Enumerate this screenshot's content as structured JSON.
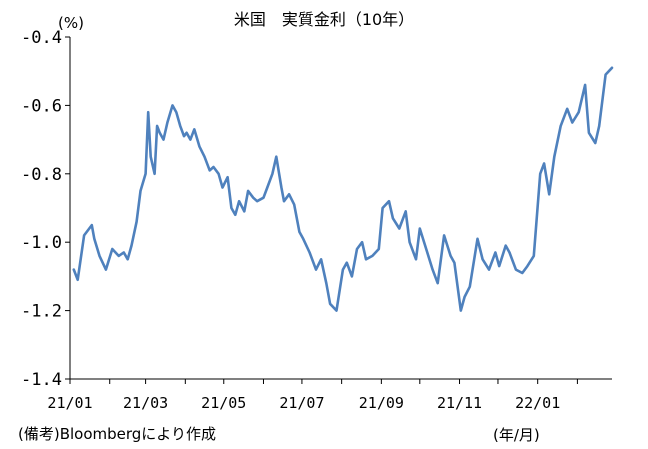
{
  "chart_data": {
    "type": "line",
    "title": "米国　実質金利（10年）",
    "ylabel": "(%)",
    "xlabel": "(年/月)",
    "note": "(備考)Bloombergにより作成",
    "ylim": [
      -1.4,
      -0.4
    ],
    "yticks": [
      -0.4,
      -0.6,
      -0.8,
      -1.0,
      -1.2,
      -1.4
    ],
    "ytick_labels": [
      "-0.4",
      "-0.6",
      "-0.8",
      "-1.0",
      "-1.2",
      "-1.4"
    ],
    "xtick_labels": [
      "21/01",
      "21/03",
      "21/05",
      "21/07",
      "21/09",
      "21/11",
      "22/01"
    ],
    "xlim": [
      "2021-01-01",
      "2022-02-28"
    ],
    "grid": false,
    "series": [
      {
        "color": "#4f81bd",
        "x": [
          "2021-01-04",
          "2021-01-07",
          "2021-01-12",
          "2021-01-18",
          "2021-01-20",
          "2021-01-24",
          "2021-01-29",
          "2021-02-03",
          "2021-02-08",
          "2021-02-12",
          "2021-02-15",
          "2021-02-18",
          "2021-02-22",
          "2021-02-25",
          "2021-03-01",
          "2021-03-03",
          "2021-03-05",
          "2021-03-08",
          "2021-03-10",
          "2021-03-12",
          "2021-03-15",
          "2021-03-18",
          "2021-03-22",
          "2021-03-25",
          "2021-03-28",
          "2021-03-31",
          "2021-04-02",
          "2021-04-05",
          "2021-04-08",
          "2021-04-12",
          "2021-04-16",
          "2021-04-20",
          "2021-04-23",
          "2021-04-27",
          "2021-04-30",
          "2021-05-04",
          "2021-05-07",
          "2021-05-10",
          "2021-05-13",
          "2021-05-17",
          "2021-05-20",
          "2021-05-24",
          "2021-05-27",
          "2021-06-01",
          "2021-06-04",
          "2021-06-08",
          "2021-06-11",
          "2021-06-15",
          "2021-06-17",
          "2021-06-21",
          "2021-06-25",
          "2021-06-29",
          "2021-07-02",
          "2021-07-07",
          "2021-07-12",
          "2021-07-16",
          "2021-07-20",
          "2021-07-23",
          "2021-07-28",
          "2021-08-02",
          "2021-08-05",
          "2021-08-09",
          "2021-08-13",
          "2021-08-17",
          "2021-08-20",
          "2021-08-25",
          "2021-08-30",
          "2021-09-02",
          "2021-09-07",
          "2021-09-10",
          "2021-09-15",
          "2021-09-20",
          "2021-09-23",
          "2021-09-28",
          "2021-10-01",
          "2021-10-06",
          "2021-10-11",
          "2021-10-15",
          "2021-10-20",
          "2021-10-25",
          "2021-10-28",
          "2021-11-02",
          "2021-11-05",
          "2021-11-09",
          "2021-11-15",
          "2021-11-19",
          "2021-11-24",
          "2021-11-29",
          "2021-12-02",
          "2021-12-07",
          "2021-12-10",
          "2021-12-15",
          "2021-12-20",
          "2021-12-24",
          "2021-12-29",
          "2022-01-03",
          "2022-01-06",
          "2022-01-10",
          "2022-01-14",
          "2022-01-19",
          "2022-01-24",
          "2022-01-28",
          "2022-02-02",
          "2022-02-07",
          "2022-02-10",
          "2022-02-15",
          "2022-02-18",
          "2022-02-23",
          "2022-02-28"
        ],
        "y": [
          -1.08,
          -1.11,
          -0.98,
          -0.95,
          -0.99,
          -1.04,
          -1.08,
          -1.02,
          -1.04,
          -1.03,
          -1.05,
          -1.01,
          -0.94,
          -0.85,
          -0.8,
          -0.62,
          -0.75,
          -0.8,
          -0.66,
          -0.68,
          -0.7,
          -0.65,
          -0.6,
          -0.62,
          -0.66,
          -0.69,
          -0.68,
          -0.7,
          -0.67,
          -0.72,
          -0.75,
          -0.79,
          -0.78,
          -0.8,
          -0.84,
          -0.81,
          -0.9,
          -0.92,
          -0.88,
          -0.91,
          -0.85,
          -0.87,
          -0.88,
          -0.87,
          -0.84,
          -0.8,
          -0.75,
          -0.84,
          -0.88,
          -0.86,
          -0.89,
          -0.97,
          -0.99,
          -1.03,
          -1.08,
          -1.05,
          -1.12,
          -1.18,
          -1.2,
          -1.08,
          -1.06,
          -1.1,
          -1.02,
          -1.0,
          -1.05,
          -1.04,
          -1.02,
          -0.9,
          -0.88,
          -0.93,
          -0.96,
          -0.91,
          -1.0,
          -1.05,
          -0.96,
          -1.02,
          -1.08,
          -1.12,
          -0.98,
          -1.04,
          -1.06,
          -1.2,
          -1.16,
          -1.13,
          -0.99,
          -1.05,
          -1.08,
          -1.03,
          -1.07,
          -1.01,
          -1.03,
          -1.08,
          -1.09,
          -1.07,
          -1.04,
          -0.8,
          -0.77,
          -0.86,
          -0.75,
          -0.66,
          -0.61,
          -0.65,
          -0.62,
          -0.54,
          -0.68,
          -0.71,
          -0.66,
          -0.51,
          -0.49
        ]
      }
    ]
  }
}
